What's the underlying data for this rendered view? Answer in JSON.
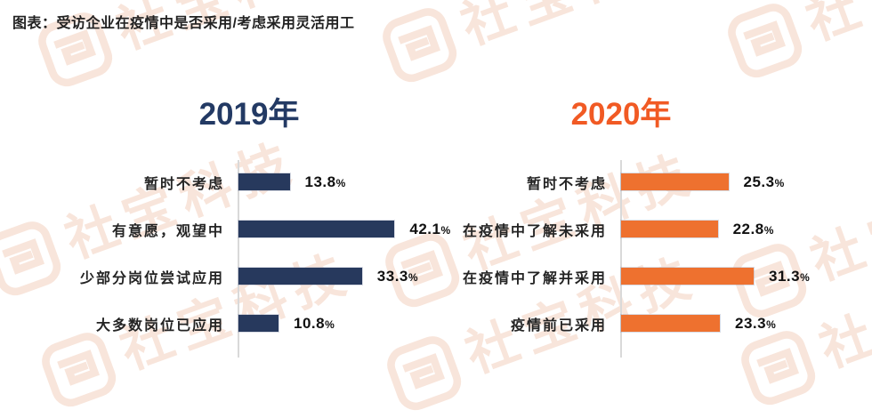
{
  "header": {
    "title": "图表：受访企业在疫情中是否采用/考虑采用灵活用工"
  },
  "watermark": {
    "text": "社宝科技",
    "color": "#f8e5db"
  },
  "chart_data": [
    {
      "type": "bar",
      "orientation": "horizontal",
      "title": "2019年",
      "title_color": "#233a64",
      "bar_color": "#27395d",
      "categories": [
        "暂时不考虑",
        "有意愿，观望中",
        "少部分岗位尝试应用",
        "大多数岗位已应用"
      ],
      "values": [
        13.8,
        42.1,
        33.3,
        10.8
      ],
      "value_labels": [
        "13.8%",
        "42.1%",
        "33.3%",
        "10.8%"
      ],
      "xlim": [
        0,
        48
      ],
      "grid": false,
      "axis_color": "#d9d9d9",
      "value_label_position": "end-of-bar"
    },
    {
      "type": "bar",
      "orientation": "horizontal",
      "title": "2020年",
      "title_color": "#f15a24",
      "bar_color": "#ee712f",
      "categories": [
        "暂时不考虑",
        "在疫情中了解未采用",
        "在疫情中了解并采用",
        "疫情前已采用"
      ],
      "values": [
        25.3,
        22.8,
        31.3,
        23.3
      ],
      "value_labels": [
        "25.3%",
        "22.8%",
        "31.3%",
        "23.3%"
      ],
      "xlim": [
        0,
        42
      ],
      "grid": false,
      "axis_color": "#d9d9d9",
      "value_label_position": "end-of-bar"
    }
  ]
}
